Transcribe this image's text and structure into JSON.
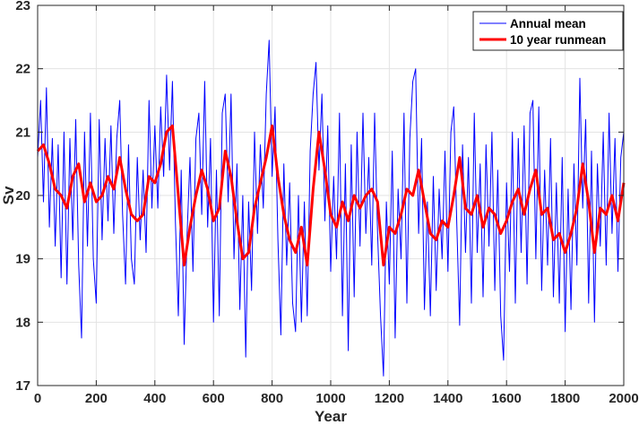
{
  "chart_data": {
    "type": "line",
    "title": "",
    "xlabel": "Year",
    "ylabel": "Sv",
    "xlim": [
      0,
      2000
    ],
    "ylim": [
      17,
      23
    ],
    "xticks": [
      "0",
      "200",
      "400",
      "600",
      "800",
      "1000",
      "1200",
      "1400",
      "1600",
      "1800",
      "2000"
    ],
    "yticks": [
      "17",
      "18",
      "19",
      "20",
      "21",
      "22",
      "23"
    ],
    "grid": true,
    "legend_position": "top-right",
    "series": [
      {
        "name": "Annual mean",
        "color": "#0000ff",
        "x_start": 0,
        "x_step": 10,
        "values": [
          20.6,
          21.5,
          19.9,
          21.7,
          19.5,
          20.9,
          19.2,
          20.8,
          18.7,
          21.0,
          18.6,
          20.9,
          19.3,
          21.2,
          18.9,
          17.75,
          21.0,
          19.2,
          21.3,
          19.0,
          18.3,
          21.2,
          19.3,
          20.9,
          19.6,
          21.1,
          19.4,
          20.9,
          21.5,
          19.7,
          18.6,
          20.8,
          19.0,
          18.6,
          20.6,
          19.3,
          20.4,
          19.1,
          21.5,
          19.8,
          21.1,
          19.8,
          21.4,
          20.3,
          21.9,
          20.4,
          21.8,
          19.6,
          18.1,
          20.4,
          17.65,
          19.4,
          20.6,
          18.8,
          20.9,
          21.3,
          19.7,
          21.8,
          19.5,
          20.9,
          18.0,
          20.4,
          18.1,
          21.3,
          21.6,
          19.9,
          21.6,
          19.0,
          20.5,
          18.2,
          20.0,
          17.45,
          19.9,
          18.5,
          21.0,
          19.4,
          20.8,
          19.8,
          21.6,
          22.45,
          20.3,
          21.4,
          19.3,
          17.8,
          20.5,
          18.9,
          20.2,
          18.3,
          17.85,
          20.0,
          18.0,
          19.9,
          18.1,
          20.7,
          21.6,
          22.1,
          20.4,
          21.6,
          19.6,
          21.1,
          18.8,
          20.3,
          19.0,
          21.3,
          18.1,
          20.5,
          17.55,
          20.8,
          18.4,
          21.0,
          19.2,
          21.3,
          19.4,
          20.6,
          18.9,
          21.3,
          19.4,
          18.1,
          17.15,
          19.9,
          18.6,
          20.7,
          17.75,
          20.1,
          19.0,
          21.3,
          18.3,
          20.9,
          21.8,
          22.0,
          19.4,
          20.9,
          18.2,
          19.9,
          18.1,
          20.3,
          18.5,
          20.1,
          19.0,
          20.7,
          18.8,
          21.0,
          21.4,
          19.6,
          17.95,
          20.8,
          19.1,
          20.6,
          18.3,
          21.3,
          19.1,
          20.5,
          18.4,
          20.8,
          19.2,
          21.0,
          18.5,
          20.4,
          18.1,
          17.4,
          20.2,
          18.8,
          21.0,
          18.3,
          20.9,
          19.1,
          21.1,
          18.6,
          21.3,
          21.5,
          19.0,
          21.4,
          18.5,
          20.4,
          18.9,
          20.9,
          18.4,
          20.2,
          18.3,
          20.6,
          17.85,
          20.1,
          18.2,
          20.5,
          18.9,
          21.85,
          19.8,
          21.2,
          18.3,
          20.7,
          18.0,
          20.5,
          19.2,
          21.0,
          18.9,
          21.3,
          19.4,
          20.9,
          18.8,
          20.6,
          21.0
        ]
      },
      {
        "name": "10 year runmean",
        "color": "#ff0000",
        "x_start": 0,
        "x_step": 20,
        "values": [
          20.7,
          20.8,
          20.5,
          20.1,
          20.0,
          19.8,
          20.3,
          20.5,
          19.9,
          20.2,
          19.9,
          20.0,
          20.3,
          20.1,
          20.6,
          20.1,
          19.7,
          19.6,
          19.7,
          20.3,
          20.2,
          20.5,
          21.0,
          21.1,
          20.0,
          18.9,
          19.5,
          20.0,
          20.4,
          20.1,
          19.6,
          19.8,
          20.7,
          20.3,
          19.6,
          19.0,
          19.1,
          19.8,
          20.2,
          20.6,
          21.1,
          20.3,
          19.7,
          19.3,
          19.1,
          19.5,
          18.9,
          20.1,
          21.0,
          20.4,
          19.7,
          19.5,
          19.9,
          19.6,
          20.0,
          19.8,
          20.0,
          20.1,
          19.9,
          18.9,
          19.5,
          19.4,
          19.7,
          20.1,
          20.0,
          20.4,
          19.9,
          19.4,
          19.3,
          19.6,
          19.5,
          20.0,
          20.6,
          19.8,
          19.7,
          20.0,
          19.5,
          19.8,
          19.7,
          19.4,
          19.6,
          19.9,
          20.1,
          19.7,
          20.1,
          20.4,
          19.7,
          19.8,
          19.3,
          19.4,
          19.1,
          19.4,
          19.8,
          20.5,
          19.9,
          19.1,
          19.8,
          19.7,
          20.0,
          19.6,
          20.2
        ]
      }
    ]
  }
}
